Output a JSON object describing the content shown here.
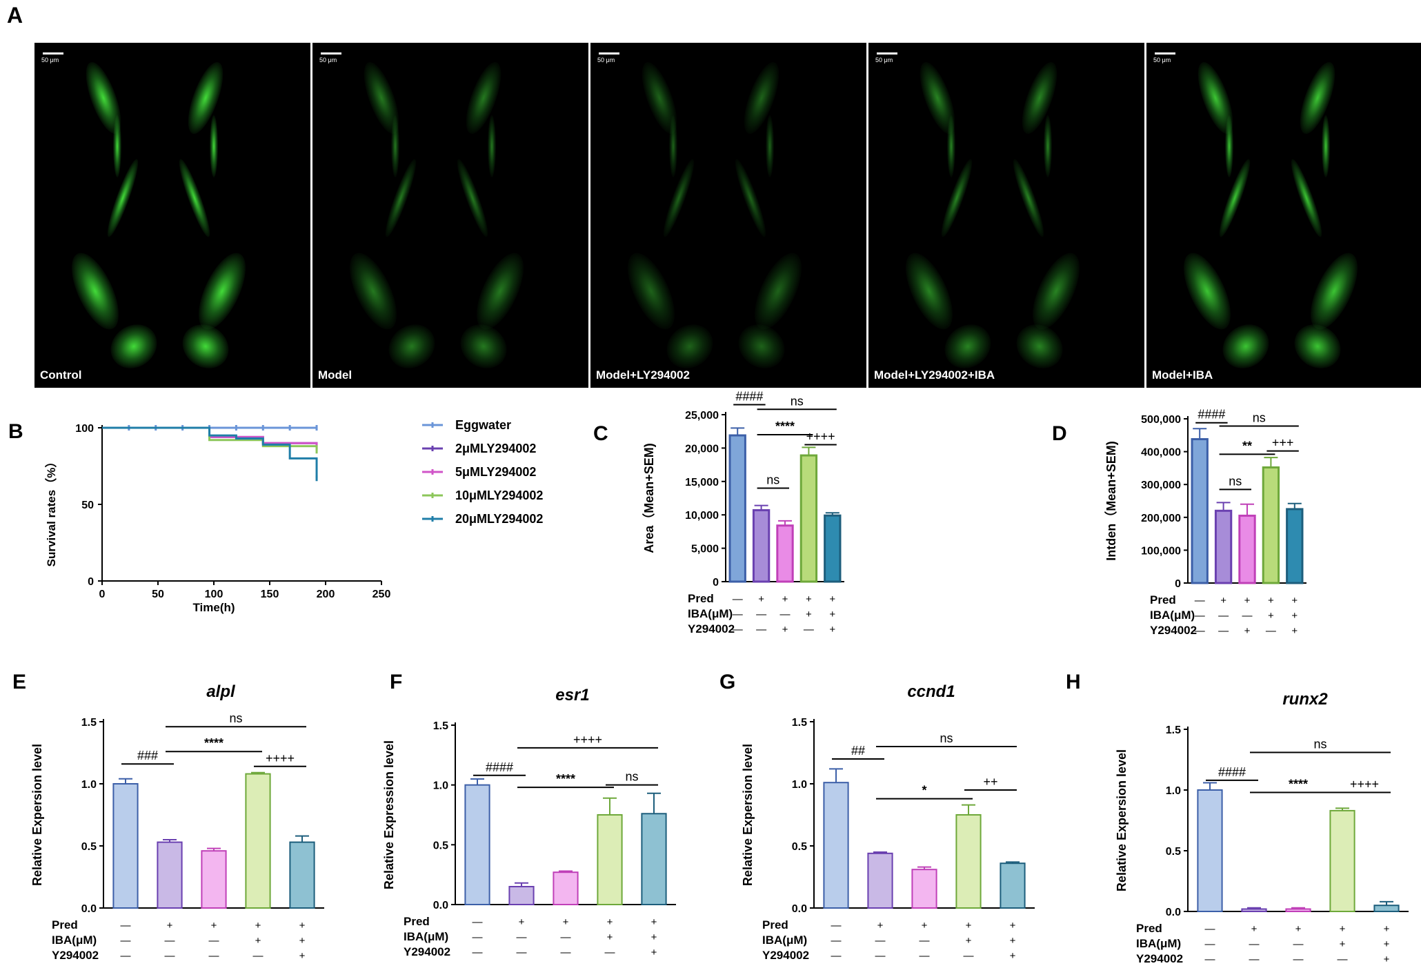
{
  "panels": {
    "A": {
      "letter": "A",
      "images": [
        {
          "label": "Control",
          "scale": "50 μm",
          "intensity": 1.0
        },
        {
          "label": "Model",
          "scale": "50 μm",
          "intensity": 0.55
        },
        {
          "label": "Model+LY294002",
          "scale": "50 μm",
          "intensity": 0.45
        },
        {
          "label": "Model+LY294002+IBA",
          "scale": "50 μm",
          "intensity": 0.6
        },
        {
          "label": "Model+IBA",
          "scale": "50 μm",
          "intensity": 0.9
        }
      ]
    }
  },
  "colors": {
    "blue": "#7FA6D9",
    "purple": "#A78CD8",
    "pink": "#E98BE6",
    "green": "#B8DB7A",
    "teal": "#2E8BB0",
    "blue_edge": "#3C5FA8",
    "purple_edge": "#6A40B0",
    "pink_edge": "#C040B8",
    "green_edge": "#6EA83A",
    "teal_edge": "#1D5E7C",
    "light_blue": "#B9CDEB",
    "light_purple": "#C9B9E6",
    "light_pink": "#F3B6F0",
    "light_green": "#DCEDB6",
    "light_teal": "#8EC1D2"
  },
  "chart_data": [
    {
      "id": "B",
      "letter": "B",
      "type": "line",
      "xlabel": "Time(h)",
      "ylabel": "Survival rates（%）",
      "xlim": [
        0,
        250
      ],
      "ylim": [
        0,
        100
      ],
      "xticks": [
        0,
        50,
        100,
        150,
        200,
        250
      ],
      "yticks": [
        0,
        50,
        100
      ],
      "series": [
        {
          "name": "Eggwater",
          "color": "#6A95D8",
          "steps": [
            [
              0,
              100
            ],
            [
              192,
              100
            ]
          ],
          "marks": [
            [
              24,
              100
            ],
            [
              48,
              100
            ],
            [
              72,
              100
            ],
            [
              96,
              100
            ],
            [
              120,
              100
            ],
            [
              144,
              100
            ],
            [
              168,
              100
            ],
            [
              192,
              100
            ]
          ]
        },
        {
          "name": "2μMLY294002",
          "color": "#6A40B0",
          "steps": [
            [
              0,
              100
            ],
            [
              96,
              94
            ],
            [
              144,
              90
            ],
            [
              192,
              86
            ]
          ],
          "marks": []
        },
        {
          "name": "5μMLY294002",
          "color": "#D054C8",
          "steps": [
            [
              0,
              100
            ],
            [
              96,
              94
            ],
            [
              144,
              90
            ],
            [
              192,
              86
            ]
          ],
          "marks": []
        },
        {
          "name": "10μMLY294002",
          "color": "#8CC65A",
          "steps": [
            [
              0,
              100
            ],
            [
              96,
              92
            ],
            [
              144,
              88
            ],
            [
              192,
              85
            ]
          ],
          "marks": [
            [
              192,
              85
            ]
          ]
        },
        {
          "name": "20μMLY294002",
          "color": "#1F7EA8",
          "steps": [
            [
              0,
              100
            ],
            [
              96,
              95
            ],
            [
              120,
              93
            ],
            [
              144,
              89
            ],
            [
              168,
              80
            ],
            [
              192,
              67
            ]
          ],
          "marks": [
            [
              192,
              67
            ]
          ]
        }
      ]
    },
    {
      "id": "C",
      "letter": "C",
      "type": "bar",
      "ylabel": "Area（Mean+SEM)",
      "ylim": [
        0,
        25000
      ],
      "yticks": [
        0,
        5000,
        10000,
        15000,
        20000,
        25000
      ],
      "ytick_labels": [
        "0",
        "5,000",
        "10,000",
        "15,000",
        "20,000",
        "25,000"
      ],
      "values": [
        21900,
        10700,
        8400,
        18900,
        9900
      ],
      "errors": [
        1100,
        700,
        700,
        1200,
        400
      ],
      "conditions": {
        "rows": [
          "Pred",
          "IBA(μM)",
          "Y294002"
        ],
        "signs": [
          [
            "—",
            "+",
            "+",
            "+",
            "+"
          ],
          [
            "—",
            "—",
            "—",
            "+",
            "+"
          ],
          [
            "—",
            "—",
            "+",
            "—",
            "+"
          ]
        ]
      },
      "annotations": [
        {
          "text": "####",
          "from": 0,
          "to": 1,
          "level": 26500
        },
        {
          "text": "ns",
          "from": 1,
          "to": 4,
          "level": 25800
        },
        {
          "text": "****",
          "from": 1,
          "to": 3,
          "level": 22000
        },
        {
          "text": "++++",
          "from": 3,
          "to": 4,
          "level": 20500
        },
        {
          "text": "ns",
          "from": 1,
          "to": 2,
          "level": 14000
        }
      ]
    },
    {
      "id": "D",
      "letter": "D",
      "type": "bar",
      "ylabel": "Intden（Mean+SEM)",
      "ylim": [
        0,
        500000
      ],
      "yticks": [
        0,
        100000,
        200000,
        300000,
        400000,
        500000
      ],
      "ytick_labels": [
        "0",
        "100,000",
        "200,000",
        "300,000",
        "400,000",
        "500,000"
      ],
      "values": [
        438000,
        220000,
        205000,
        352000,
        225000
      ],
      "errors": [
        32000,
        25000,
        35000,
        30000,
        17000
      ],
      "conditions": {
        "rows": [
          "Pred",
          "IBA(μM)",
          "Y294002"
        ],
        "signs": [
          [
            "—",
            "+",
            "+",
            "+",
            "+"
          ],
          [
            "—",
            "—",
            "—",
            "+",
            "+"
          ],
          [
            "—",
            "—",
            "+",
            "—",
            "+"
          ]
        ]
      },
      "annotations": [
        {
          "text": "####",
          "from": 0,
          "to": 1,
          "level": 488000
        },
        {
          "text": "ns",
          "from": 1,
          "to": 4,
          "level": 478000
        },
        {
          "text": "**",
          "from": 1,
          "to": 3,
          "level": 392000
        },
        {
          "text": "+++",
          "from": 3,
          "to": 4,
          "level": 402000
        },
        {
          "text": "ns",
          "from": 1,
          "to": 2,
          "level": 285000
        }
      ]
    },
    {
      "id": "E",
      "letter": "E",
      "type": "bar",
      "title": "alpl",
      "ylabel": "Relative Expersion level",
      "ylim": [
        0,
        1.5
      ],
      "yticks": [
        0,
        0.5,
        1.0,
        1.5
      ],
      "ytick_labels": [
        "0.0",
        "0.5",
        "1.0",
        "1.5"
      ],
      "values": [
        1.0,
        0.53,
        0.46,
        1.08,
        0.53
      ],
      "errors": [
        0.04,
        0.02,
        0.02,
        0.01,
        0.05
      ],
      "conditions": {
        "rows": [
          "Pred",
          "IBA(μM)",
          "Y294002"
        ],
        "signs": [
          [
            "—",
            "+",
            "+",
            "+",
            "+"
          ],
          [
            "—",
            "—",
            "—",
            "+",
            "+"
          ],
          [
            "—",
            "—",
            "—",
            "—",
            "+"
          ]
        ]
      },
      "annotations": [
        {
          "text": "ns",
          "from": 1,
          "to": 4,
          "level": 1.46
        },
        {
          "text": "###",
          "from": 0,
          "to": 1,
          "level": 1.16
        },
        {
          "text": "****",
          "from": 1,
          "to": 3,
          "level": 1.26
        },
        {
          "text": "++++",
          "from": 3,
          "to": 4,
          "level": 1.14
        }
      ]
    },
    {
      "id": "F",
      "letter": "F",
      "type": "bar",
      "title": "esr1",
      "ylabel": "Relative Expression level",
      "ylim": [
        0,
        1.5
      ],
      "yticks": [
        0,
        0.5,
        1.0,
        1.5
      ],
      "ytick_labels": [
        "0.0",
        "0.5",
        "1.0",
        "1.5"
      ],
      "values": [
        1.0,
        0.15,
        0.27,
        0.75,
        0.76
      ],
      "errors": [
        0.05,
        0.03,
        0.01,
        0.14,
        0.17
      ],
      "conditions": {
        "rows": [
          "Pred",
          "IBA(μM)",
          "Y294002"
        ],
        "signs": [
          [
            "—",
            "+",
            "+",
            "+",
            "+"
          ],
          [
            "—",
            "—",
            "—",
            "+",
            "+"
          ],
          [
            "—",
            "—",
            "—",
            "—",
            "+"
          ]
        ]
      },
      "annotations": [
        {
          "text": "++++",
          "from": 1,
          "to": 4,
          "level": 1.31
        },
        {
          "text": "####",
          "from": 0,
          "to": 1,
          "level": 1.08
        },
        {
          "text": "****",
          "from": 1,
          "to": 3,
          "level": 0.98
        },
        {
          "text": "ns",
          "from": 3,
          "to": 4,
          "level": 1.0
        }
      ]
    },
    {
      "id": "G",
      "letter": "G",
      "type": "bar",
      "title": "ccnd1",
      "ylabel": "Relative Expersion level",
      "ylim": [
        0,
        1.5
      ],
      "yticks": [
        0,
        0.5,
        1.0,
        1.5
      ],
      "ytick_labels": [
        "0.0",
        "0.5",
        "1.0",
        "1.5"
      ],
      "values": [
        1.01,
        0.44,
        0.31,
        0.75,
        0.36
      ],
      "errors": [
        0.11,
        0.01,
        0.02,
        0.08,
        0.01
      ],
      "conditions": {
        "rows": [
          "Pred",
          "IBA(μM)",
          "Y294002"
        ],
        "signs": [
          [
            "—",
            "+",
            "+",
            "+",
            "+"
          ],
          [
            "—",
            "—",
            "—",
            "+",
            "+"
          ],
          [
            "—",
            "—",
            "—",
            "—",
            "+"
          ]
        ]
      },
      "annotations": [
        {
          "text": "ns",
          "from": 1,
          "to": 4,
          "level": 1.3
        },
        {
          "text": "##",
          "from": 0,
          "to": 1,
          "level": 1.2
        },
        {
          "text": "*",
          "from": 1,
          "to": 3,
          "level": 0.88
        },
        {
          "text": "++",
          "from": 3,
          "to": 4,
          "level": 0.95
        }
      ]
    },
    {
      "id": "H",
      "letter": "H",
      "type": "bar",
      "title": "runx2",
      "ylabel": "Relative Expersion level",
      "ylim": [
        0,
        1.5
      ],
      "yticks": [
        0,
        0.5,
        1.0,
        1.5
      ],
      "ytick_labels": [
        "0.0",
        "0.5",
        "1.0",
        "1.5"
      ],
      "values": [
        1.0,
        0.02,
        0.02,
        0.83,
        0.05
      ],
      "errors": [
        0.06,
        0.01,
        0.01,
        0.02,
        0.03
      ],
      "conditions": {
        "rows": [
          "Pred",
          "IBA(μM)",
          "Y294002"
        ],
        "signs": [
          [
            "—",
            "+",
            "+",
            "+",
            "+"
          ],
          [
            "—",
            "—",
            "—",
            "+",
            "+"
          ],
          [
            "—",
            "—",
            "—",
            "—",
            "+"
          ]
        ]
      },
      "annotations": [
        {
          "text": "ns",
          "from": 1,
          "to": 4,
          "level": 1.31
        },
        {
          "text": "####",
          "from": 0,
          "to": 1,
          "level": 1.08
        },
        {
          "text": "****",
          "from": 1,
          "to": 3,
          "level": 0.98
        },
        {
          "text": "++++",
          "from": 3,
          "to": 4,
          "level": 0.98
        }
      ]
    }
  ]
}
